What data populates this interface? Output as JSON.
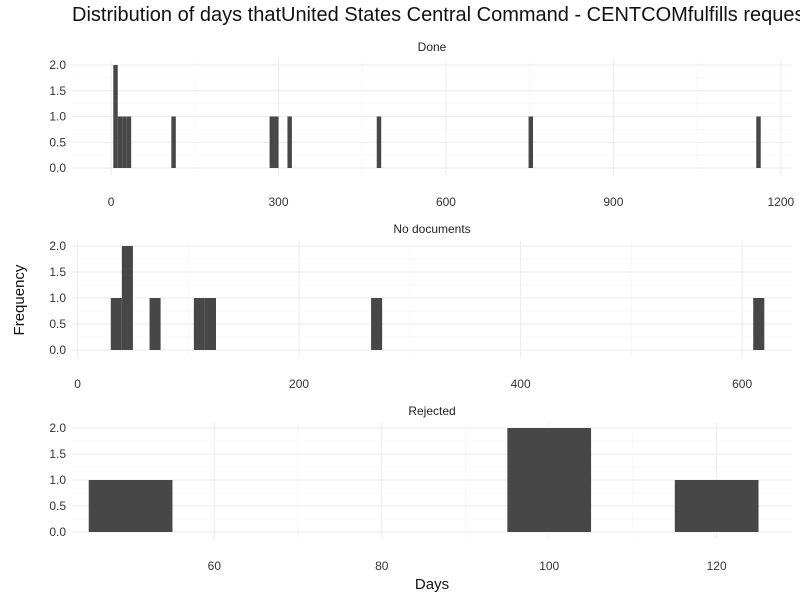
{
  "chart_data": {
    "type": "bar",
    "title": "Distribution of days thatUnited States Central Command - CENTCOMfulfills requests",
    "xlabel": "Days",
    "ylabel": "Frequency",
    "grid": true,
    "bar_color": "#474747",
    "panels": [
      {
        "strip": "Done",
        "xlim": [
          -70,
          1220
        ],
        "xticks": [
          0,
          300,
          600,
          900,
          1200
        ],
        "xtick_labels": [
          "0",
          "300",
          "600",
          "900",
          "1200"
        ],
        "ylim": [
          0,
          2.1
        ],
        "yticks": [
          0,
          0.5,
          1,
          1.5,
          2
        ],
        "ytick_labels": [
          "0.0",
          "0.5",
          "1.0",
          "1.5",
          "2.0"
        ],
        "bin_width": 8,
        "bins": [
          {
            "x": 8,
            "count": 2
          },
          {
            "x": 16,
            "count": 1
          },
          {
            "x": 24,
            "count": 1
          },
          {
            "x": 32,
            "count": 1
          },
          {
            "x": 112,
            "count": 1
          },
          {
            "x": 288,
            "count": 1
          },
          {
            "x": 296,
            "count": 1
          },
          {
            "x": 320,
            "count": 1
          },
          {
            "x": 480,
            "count": 1
          },
          {
            "x": 752,
            "count": 1
          },
          {
            "x": 1160,
            "count": 1
          }
        ]
      },
      {
        "strip": "No documents",
        "xlim": [
          -5,
          645
        ],
        "xticks": [
          0,
          200,
          400,
          600
        ],
        "xtick_labels": [
          "0",
          "200",
          "400",
          "600"
        ],
        "ylim": [
          0,
          2.1
        ],
        "yticks": [
          0,
          0.5,
          1,
          1.5,
          2
        ],
        "ytick_labels": [
          "0.0",
          "0.5",
          "1.0",
          "1.5",
          "2.0"
        ],
        "bin_width": 10,
        "bins": [
          {
            "x": 35,
            "count": 1
          },
          {
            "x": 45,
            "count": 2
          },
          {
            "x": 70,
            "count": 1
          },
          {
            "x": 110,
            "count": 1
          },
          {
            "x": 120,
            "count": 1
          },
          {
            "x": 270,
            "count": 1
          },
          {
            "x": 615,
            "count": 1
          }
        ]
      },
      {
        "strip": "Rejected",
        "xlim": [
          43,
          129
        ],
        "xticks": [
          60,
          80,
          100,
          120
        ],
        "xtick_labels": [
          "60",
          "80",
          "100",
          "120"
        ],
        "ylim": [
          0,
          2.1
        ],
        "yticks": [
          0,
          0.5,
          1,
          1.5,
          2
        ],
        "ytick_labels": [
          "0.0",
          "0.5",
          "1.0",
          "1.5",
          "2.0"
        ],
        "bin_width": 10,
        "bins": [
          {
            "x": 50,
            "count": 1
          },
          {
            "x": 100,
            "count": 2
          },
          {
            "x": 120,
            "count": 1
          }
        ]
      }
    ]
  }
}
